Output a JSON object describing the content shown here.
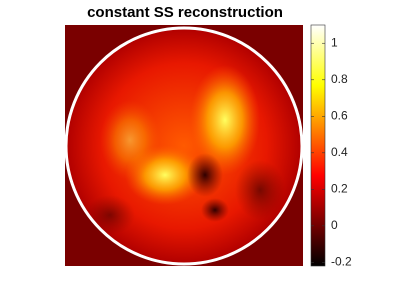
{
  "chart_data": {
    "type": "heatmap",
    "title": "constant SS reconstruction",
    "colormap": "hot",
    "clim": [
      -0.22,
      1.1
    ],
    "colorbar_ticks": [
      -0.2,
      0,
      0.2,
      0.4,
      0.6,
      0.8,
      1
    ]
  }
}
